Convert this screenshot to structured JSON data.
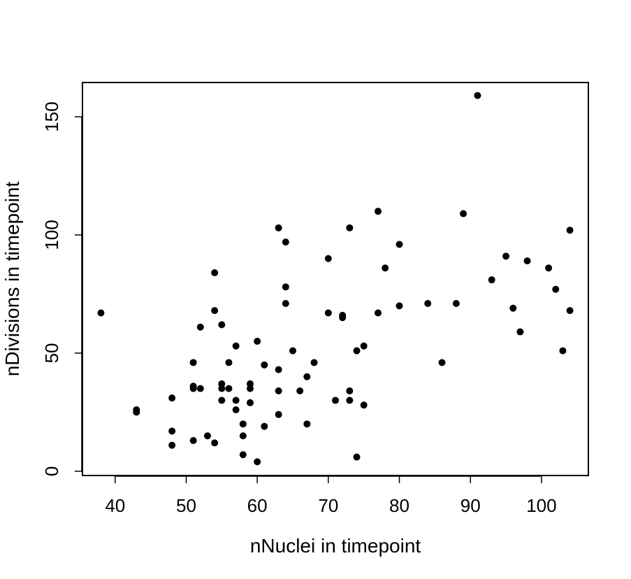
{
  "chart_data": {
    "type": "scatter",
    "title": "",
    "xlabel": "nNuclei in timepoint",
    "ylabel": "nDivisions in timepoint",
    "xlim": [
      35.4,
      106.6
    ],
    "ylim": [
      -1.8,
      164.5
    ],
    "x_ticks": [
      40,
      50,
      60,
      70,
      80,
      90,
      100
    ],
    "y_ticks": [
      0,
      50,
      100,
      150
    ],
    "grid": false,
    "legend": "none",
    "point_color": "#000000",
    "points": [
      {
        "x": 38,
        "y": 67
      },
      {
        "x": 43,
        "y": 26
      },
      {
        "x": 43,
        "y": 25
      },
      {
        "x": 48,
        "y": 31
      },
      {
        "x": 48,
        "y": 17
      },
      {
        "x": 48,
        "y": 11
      },
      {
        "x": 51,
        "y": 46
      },
      {
        "x": 51,
        "y": 36
      },
      {
        "x": 51,
        "y": 35
      },
      {
        "x": 51,
        "y": 13
      },
      {
        "x": 52,
        "y": 61
      },
      {
        "x": 52,
        "y": 35
      },
      {
        "x": 53,
        "y": 15
      },
      {
        "x": 54,
        "y": 84
      },
      {
        "x": 54,
        "y": 68
      },
      {
        "x": 54,
        "y": 12
      },
      {
        "x": 55,
        "y": 62
      },
      {
        "x": 55,
        "y": 37
      },
      {
        "x": 55,
        "y": 35
      },
      {
        "x": 55,
        "y": 30
      },
      {
        "x": 56,
        "y": 46
      },
      {
        "x": 56,
        "y": 35
      },
      {
        "x": 57,
        "y": 53
      },
      {
        "x": 57,
        "y": 30
      },
      {
        "x": 57,
        "y": 26
      },
      {
        "x": 58,
        "y": 20
      },
      {
        "x": 58,
        "y": 15
      },
      {
        "x": 58,
        "y": 7
      },
      {
        "x": 59,
        "y": 37
      },
      {
        "x": 59,
        "y": 35
      },
      {
        "x": 59,
        "y": 29
      },
      {
        "x": 60,
        "y": 55
      },
      {
        "x": 60,
        "y": 4
      },
      {
        "x": 61,
        "y": 45
      },
      {
        "x": 61,
        "y": 19
      },
      {
        "x": 63,
        "y": 103
      },
      {
        "x": 63,
        "y": 43
      },
      {
        "x": 63,
        "y": 34
      },
      {
        "x": 63,
        "y": 24
      },
      {
        "x": 64,
        "y": 97
      },
      {
        "x": 64,
        "y": 78
      },
      {
        "x": 64,
        "y": 71
      },
      {
        "x": 65,
        "y": 51
      },
      {
        "x": 66,
        "y": 34
      },
      {
        "x": 67,
        "y": 40
      },
      {
        "x": 67,
        "y": 20
      },
      {
        "x": 68,
        "y": 46
      },
      {
        "x": 70,
        "y": 90
      },
      {
        "x": 70,
        "y": 67
      },
      {
        "x": 71,
        "y": 30
      },
      {
        "x": 72,
        "y": 66
      },
      {
        "x": 72,
        "y": 65
      },
      {
        "x": 73,
        "y": 103
      },
      {
        "x": 73,
        "y": 34
      },
      {
        "x": 73,
        "y": 30
      },
      {
        "x": 74,
        "y": 51
      },
      {
        "x": 74,
        "y": 6
      },
      {
        "x": 75,
        "y": 53
      },
      {
        "x": 75,
        "y": 28
      },
      {
        "x": 77,
        "y": 110
      },
      {
        "x": 77,
        "y": 67
      },
      {
        "x": 78,
        "y": 86
      },
      {
        "x": 80,
        "y": 96
      },
      {
        "x": 80,
        "y": 70
      },
      {
        "x": 84,
        "y": 71
      },
      {
        "x": 86,
        "y": 46
      },
      {
        "x": 88,
        "y": 71
      },
      {
        "x": 89,
        "y": 109
      },
      {
        "x": 91,
        "y": 159
      },
      {
        "x": 93,
        "y": 81
      },
      {
        "x": 95,
        "y": 91
      },
      {
        "x": 96,
        "y": 69
      },
      {
        "x": 97,
        "y": 59
      },
      {
        "x": 98,
        "y": 89
      },
      {
        "x": 101,
        "y": 86
      },
      {
        "x": 102,
        "y": 77
      },
      {
        "x": 103,
        "y": 51
      },
      {
        "x": 104,
        "y": 102
      },
      {
        "x": 104,
        "y": 68
      }
    ]
  }
}
